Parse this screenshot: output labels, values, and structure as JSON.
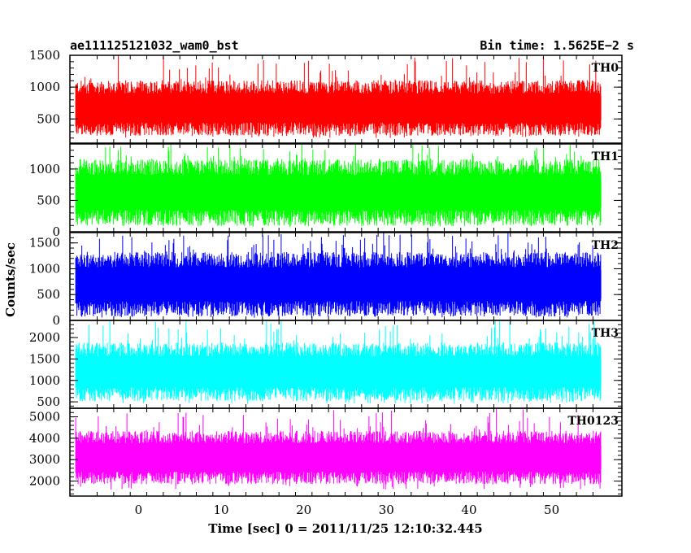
{
  "header": {
    "title": "ae111125121032_wam0_bst",
    "bin_time": "Bin time: 1.5625E−2 s"
  },
  "axes": {
    "xlabel": "Time [sec] 0 = 2011/11/25 12:10:32.445",
    "ylabel": "Counts/sec",
    "x_ticks": [
      "0",
      "10",
      "20",
      "30",
      "40",
      "50"
    ]
  },
  "chart_data": [
    {
      "type": "line",
      "label": "TH0",
      "color": "#ff0000",
      "xlim": [
        -8.3,
        58.5
      ],
      "ylim": [
        120,
        1500
      ],
      "y_ticks": [
        500,
        1000,
        1500
      ],
      "series": [
        {
          "x_range": [
            -7.6,
            56.0
          ],
          "typical_min": 320,
          "typical_max": 1020,
          "min": 200,
          "max": 1500,
          "bin_time": 0.015625
        }
      ]
    },
    {
      "type": "line",
      "label": "TH1",
      "color": "#00ff00",
      "xlim": [
        -8.3,
        58.5
      ],
      "ylim": [
        0,
        1400
      ],
      "y_ticks": [
        0,
        500,
        1000
      ],
      "series": [
        {
          "x_range": [
            -7.6,
            56.0
          ],
          "typical_min": 200,
          "typical_max": 1050,
          "min": 80,
          "max": 1400,
          "bin_time": 0.015625
        }
      ]
    },
    {
      "type": "line",
      "label": "TH2",
      "color": "#0000ff",
      "xlim": [
        -8.3,
        58.5
      ],
      "ylim": [
        0,
        1700
      ],
      "y_ticks": [
        0,
        500,
        1000,
        1500
      ],
      "series": [
        {
          "x_range": [
            -7.6,
            56.0
          ],
          "typical_min": 200,
          "typical_max": 1200,
          "min": 50,
          "max": 1700,
          "bin_time": 0.015625
        }
      ]
    },
    {
      "type": "line",
      "label": "TH3",
      "color": "#00ffff",
      "xlim": [
        -8.3,
        58.5
      ],
      "ylim": [
        350,
        2400
      ],
      "y_ticks": [
        500,
        1000,
        1500,
        2000
      ],
      "series": [
        {
          "x_range": [
            -7.6,
            56.0
          ],
          "typical_min": 650,
          "typical_max": 1750,
          "min": 450,
          "max": 2400,
          "bin_time": 0.015625
        }
      ]
    },
    {
      "type": "line",
      "label": "TH0123",
      "color": "#ff00ff",
      "xlim": [
        -8.3,
        58.5
      ],
      "ylim": [
        1300,
        5400
      ],
      "y_ticks": [
        2000,
        3000,
        4000,
        5000
      ],
      "series": [
        {
          "x_range": [
            -7.6,
            56.0
          ],
          "typical_min": 2100,
          "typical_max": 4100,
          "min": 1600,
          "max": 5400,
          "bin_time": 0.015625
        }
      ]
    }
  ]
}
